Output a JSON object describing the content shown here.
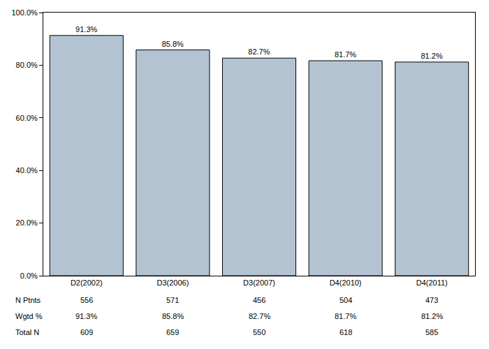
{
  "chart_data": {
    "type": "bar",
    "categories": [
      "D2(2002)",
      "D3(2006)",
      "D3(2007)",
      "D4(2010)",
      "D4(2011)"
    ],
    "values": [
      91.3,
      85.8,
      82.7,
      81.7,
      81.2
    ],
    "value_labels": [
      "91.3%",
      "85.8%",
      "82.7%",
      "81.7%",
      "81.2%"
    ],
    "data_labels": true,
    "color": "#b3c3d2",
    "ylim": [
      0,
      100
    ],
    "yticks": [
      {
        "value": 0,
        "label": "0.0%"
      },
      {
        "value": 20,
        "label": "20.0%"
      },
      {
        "value": 40,
        "label": "40.0%"
      },
      {
        "value": 60,
        "label": "60.0%"
      },
      {
        "value": 80,
        "label": "80.0%"
      },
      {
        "value": 100,
        "label": "100.0%"
      }
    ],
    "grid": false,
    "table": {
      "rows": [
        {
          "label": "N Ptnts",
          "cells": [
            "556",
            "571",
            "456",
            "504",
            "473"
          ]
        },
        {
          "label": "Wgtd %",
          "cells": [
            "91.3%",
            "85.8%",
            "82.7%",
            "81.7%",
            "81.2%"
          ]
        },
        {
          "label": "Total N",
          "cells": [
            "609",
            "659",
            "550",
            "618",
            "585"
          ]
        }
      ]
    }
  }
}
